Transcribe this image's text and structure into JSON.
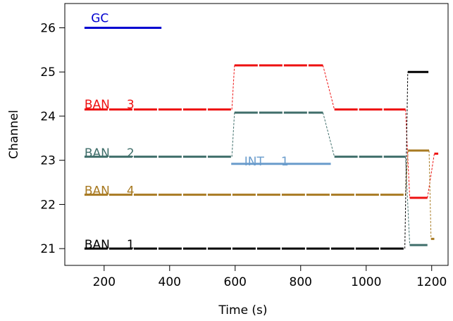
{
  "chart_data": {
    "type": "line",
    "title": "",
    "xlabel": "Time (s)",
    "ylabel": "Channel",
    "xlim": [
      80,
      1250
    ],
    "ylim": [
      20.62,
      26.55
    ],
    "x_ticks": [
      200,
      400,
      600,
      800,
      1000,
      1200
    ],
    "y_ticks": [
      21,
      22,
      23,
      24,
      25,
      26
    ],
    "grid": false,
    "series": [
      {
        "name": "GC",
        "label_parts": [
          "GC"
        ],
        "color": "#0000d0",
        "dashed": false,
        "label_at": [
          160,
          26.22
        ],
        "segments": [
          [
            [
              140,
              26.0
            ],
            [
              375,
              26.0
            ]
          ]
        ],
        "connectors": []
      },
      {
        "name": "BAN 3",
        "label_parts": [
          "BAN",
          "3"
        ],
        "color": "#ee1111",
        "dashed": true,
        "label_at": [
          140,
          24.27
        ],
        "segments": [
          [
            [
              140,
              24.15
            ],
            [
              590,
              24.15
            ]
          ],
          [
            [
              598,
              25.15
            ],
            [
              868,
              25.15
            ]
          ],
          [
            [
              903,
              24.15
            ],
            [
              1120,
              24.15
            ]
          ],
          [
            [
              1133,
              22.15
            ],
            [
              1187,
              22.15
            ]
          ],
          [
            [
              1208,
              23.15
            ],
            [
              1220,
              23.15
            ]
          ]
        ],
        "connectors": [
          [
            [
              590,
              24.15
            ],
            [
              598,
              25.15
            ]
          ],
          [
            [
              868,
              25.15
            ],
            [
              903,
              24.15
            ]
          ],
          [
            [
              1120,
              24.15
            ],
            [
              1133,
              22.15
            ]
          ],
          [
            [
              1187,
              22.15
            ],
            [
              1208,
              23.15
            ]
          ]
        ]
      },
      {
        "name": "BAN 2",
        "label_parts": [
          "BAN",
          "2"
        ],
        "color": "#3f6e6a",
        "dashed": true,
        "label_at": [
          140,
          23.17
        ],
        "segments": [
          [
            [
              140,
              23.08
            ],
            [
              590,
              23.08
            ]
          ],
          [
            [
              598,
              24.08
            ],
            [
              868,
              24.08
            ]
          ],
          [
            [
              903,
              23.08
            ],
            [
              1120,
              23.08
            ]
          ],
          [
            [
              1133,
              21.08
            ],
            [
              1187,
              21.08
            ]
          ]
        ],
        "connectors": [
          [
            [
              590,
              23.08
            ],
            [
              598,
              24.08
            ]
          ],
          [
            [
              868,
              24.08
            ],
            [
              903,
              23.08
            ]
          ],
          [
            [
              1120,
              23.08
            ],
            [
              1133,
              21.08
            ]
          ]
        ]
      },
      {
        "name": "INT 1",
        "label_parts": [
          "INT",
          "1"
        ],
        "color": "#6a9ccc",
        "dashed": false,
        "label_at": [
          628,
          22.98
        ],
        "segments": [
          [
            [
              588,
              22.92
            ],
            [
              892,
              22.92
            ]
          ]
        ],
        "connectors": []
      },
      {
        "name": "BAN 4",
        "label_parts": [
          "BAN",
          "4"
        ],
        "color": "#a87a22",
        "dashed": true,
        "label_at": [
          140,
          22.32
        ],
        "segments": [
          [
            [
              140,
              22.22
            ],
            [
              1120,
              22.22
            ]
          ],
          [
            [
              1128,
              23.22
            ],
            [
              1192,
              23.22
            ]
          ],
          [
            [
              1198,
              21.22
            ],
            [
              1208,
              21.22
            ]
          ]
        ],
        "connectors": [
          [
            [
              1120,
              22.22
            ],
            [
              1128,
              23.22
            ]
          ],
          [
            [
              1192,
              23.22
            ],
            [
              1198,
              21.22
            ]
          ]
        ]
      },
      {
        "name": "BAN 1",
        "label_parts": [
          "BAN",
          "1"
        ],
        "color": "#000000",
        "dashed": true,
        "label_at": [
          140,
          21.1
        ],
        "segments": [
          [
            [
              140,
              21.0
            ],
            [
              1118,
              21.0
            ]
          ],
          [
            [
              1127,
              25.0
            ],
            [
              1190,
              25.0
            ]
          ]
        ],
        "connectors": [
          [
            [
              1118,
              21.0
            ],
            [
              1127,
              25.0
            ]
          ]
        ]
      }
    ]
  }
}
